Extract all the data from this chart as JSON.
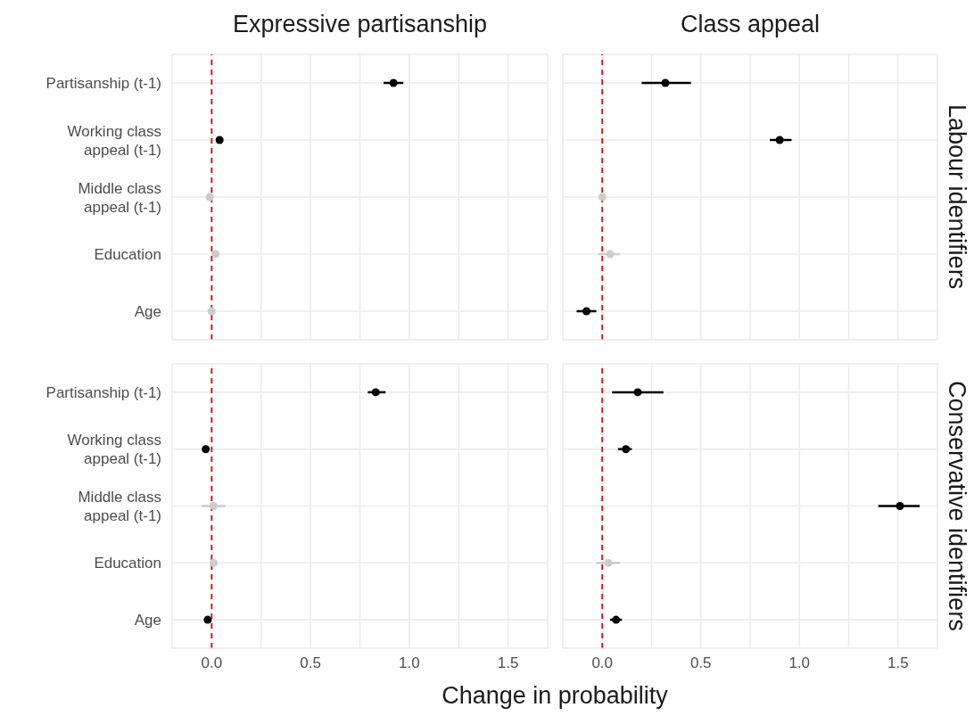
{
  "chart_data": [
    {
      "type": "scatter",
      "orientation": "horizontal",
      "title": "Expressive partisanship",
      "categories": [
        "Partisanship (t-1)",
        "Working class appeal (t-1)",
        "Middle class appeal (t-1)",
        "Education",
        "Age"
      ],
      "values": [
        0.92,
        0.04,
        -0.01,
        0.02,
        0.0
      ],
      "colors": [
        "#000000",
        "#000000",
        "#cccccc",
        "#cccccc",
        "#cccccc"
      ],
      "errors": [
        [
          0.87,
          0.97
        ],
        null,
        null,
        null,
        null
      ],
      "marker": "circle",
      "xlim": [
        -0.2,
        1.7
      ],
      "xticks": [
        {
          "value": 0,
          "label": null
        },
        {
          "value": 0.25,
          "label": null
        },
        {
          "value": 0.5,
          "label": null
        },
        {
          "value": 0.75,
          "label": null
        },
        {
          "value": 1,
          "label": null
        },
        {
          "value": 1.25,
          "label": null
        },
        {
          "value": 1.5,
          "label": null
        }
      ],
      "grid": true,
      "ref_lines": [
        {
          "axis": "x",
          "value": 0,
          "color": "#cc2222",
          "line_style": "dashed"
        }
      ],
      "tick_labels": "y"
    },
    {
      "type": "scatter",
      "orientation": "horizontal",
      "title": "Class appeal",
      "y2label": "Labour identifiers",
      "categories": [
        null,
        null,
        null,
        null,
        null
      ],
      "values": [
        0.32,
        0.9,
        0.0,
        0.04,
        -0.08
      ],
      "colors": [
        "#000000",
        "#000000",
        "#cccccc",
        "#cccccc",
        "#000000"
      ],
      "errors": [
        [
          0.2,
          0.45
        ],
        [
          0.85,
          0.96
        ],
        null,
        [
          -0.02,
          0.09
        ],
        [
          -0.13,
          -0.03
        ]
      ],
      "marker": "circle",
      "xlim": [
        -0.2,
        1.7
      ],
      "xticks": [
        {
          "value": 0,
          "label": null
        },
        {
          "value": 0.25,
          "label": null
        },
        {
          "value": 0.5,
          "label": null
        },
        {
          "value": 0.75,
          "label": null
        },
        {
          "value": 1,
          "label": null
        },
        {
          "value": 1.25,
          "label": null
        },
        {
          "value": 1.5,
          "label": null
        }
      ],
      "grid": true,
      "ref_lines": [
        {
          "axis": "x",
          "value": 0,
          "color": "#cc2222",
          "line_style": "dashed"
        }
      ],
      "tick_labels": false
    },
    {
      "type": "scatter",
      "orientation": "horizontal",
      "xlabel": "Change in probability",
      "categories": [
        "Partisanship (t-1)",
        "Working class appeal (t-1)",
        "Middle class appeal (t-1)",
        "Education",
        "Age"
      ],
      "values": [
        0.83,
        -0.03,
        0.01,
        0.01,
        -0.02
      ],
      "colors": [
        "#000000",
        "#000000",
        "#cccccc",
        "#cccccc",
        "#000000"
      ],
      "errors": [
        [
          0.79,
          0.88
        ],
        null,
        [
          -0.05,
          0.07
        ],
        null,
        null
      ],
      "marker": "circle",
      "xlim": [
        -0.2,
        1.7
      ],
      "xticks": [
        {
          "value": 0,
          "label": "0.0"
        },
        {
          "value": 0.25,
          "label": null
        },
        {
          "value": 0.5,
          "label": "0.5"
        },
        {
          "value": 0.75,
          "label": null
        },
        {
          "value": 1,
          "label": "1.0"
        },
        {
          "value": 1.25,
          "label": null
        },
        {
          "value": 1.5,
          "label": "1.5"
        }
      ],
      "grid": true,
      "ref_lines": [
        {
          "axis": "x",
          "value": 0,
          "color": "#cc2222",
          "line_style": "dashed"
        }
      ]
    },
    {
      "type": "scatter",
      "orientation": "horizontal",
      "y2label": "Conservative identifiers",
      "categories": [
        null,
        null,
        null,
        null,
        null
      ],
      "values": [
        0.18,
        0.12,
        1.51,
        0.03,
        0.07
      ],
      "colors": [
        "#000000",
        "#000000",
        "#000000",
        "#cccccc",
        "#000000"
      ],
      "errors": [
        [
          0.05,
          0.31
        ],
        [
          0.08,
          0.15
        ],
        [
          1.4,
          1.61
        ],
        [
          -0.03,
          0.09
        ],
        [
          0.04,
          0.1
        ]
      ],
      "marker": "circle",
      "xlim": [
        -0.2,
        1.7
      ],
      "xticks": [
        {
          "value": 0,
          "label": "0.0"
        },
        {
          "value": 0.25,
          "label": null
        },
        {
          "value": 0.5,
          "label": "0.5"
        },
        {
          "value": 0.75,
          "label": null
        },
        {
          "value": 1,
          "label": "1.0"
        },
        {
          "value": 1.25,
          "label": null
        },
        {
          "value": 1.5,
          "label": "1.5"
        }
      ],
      "grid": true,
      "ref_lines": [
        {
          "axis": "x",
          "value": 0,
          "color": "#cc2222",
          "line_style": "dashed"
        }
      ],
      "tick_labels": "x"
    }
  ]
}
